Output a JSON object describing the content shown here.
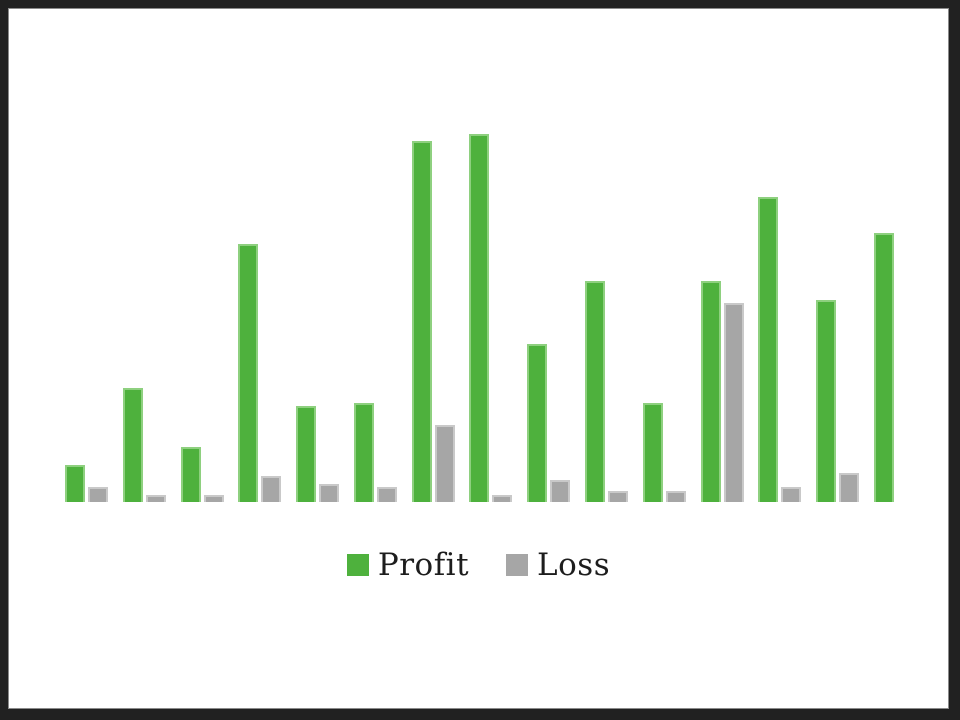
{
  "window": {
    "frame_color": "#212121",
    "slide_background": "#ffffff",
    "slide_edge_color": "#8a8a8a"
  },
  "chart_data": {
    "type": "bar",
    "title": "",
    "xlabel": "",
    "ylabel": "",
    "categories": [],
    "series": [
      {
        "name": "Profit",
        "color": "#4eb13d",
        "edge_color": "#8ed07f",
        "values": [
          10,
          31,
          15,
          70,
          26,
          27,
          98,
          100,
          43,
          60,
          27,
          60,
          83,
          55,
          73
        ]
      },
      {
        "name": "Loss",
        "color": "#a6a6a6",
        "edge_color": "#c9c9c9",
        "values": [
          4,
          2,
          2,
          7,
          5,
          4,
          21,
          2,
          6,
          3,
          3,
          54,
          4,
          8,
          0
        ]
      }
    ],
    "ylim": [
      0,
      100
    ],
    "axes_visible": false,
    "grid": false,
    "legend_position": "bottom-center",
    "legend_text_color": "#1d1d1d"
  }
}
